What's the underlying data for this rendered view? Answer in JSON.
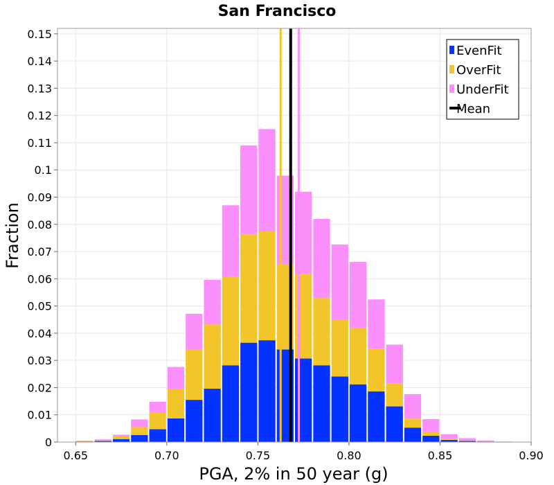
{
  "chart_data": {
    "type": "bar",
    "stacked": true,
    "title": "San Francisco",
    "xlabel": "PGA, 2% in 50 year (g)",
    "ylabel": "Fraction",
    "xlim": [
      0.64,
      0.9
    ],
    "ylim": [
      0,
      0.152
    ],
    "xticks": [
      "0.65",
      "0.70",
      "0.75",
      "0.80",
      "0.85",
      "0.90"
    ],
    "xtick_values": [
      0.65,
      0.7,
      0.75,
      0.8,
      0.85,
      0.9
    ],
    "yticks": [
      "0",
      "0.01",
      "0.02",
      "0.03",
      "0.04",
      "0.05",
      "0.06",
      "0.07",
      "0.08",
      "0.09",
      "0.1",
      "0.11",
      "0.12",
      "0.13",
      "0.14",
      "0.15"
    ],
    "ytick_values": [
      0,
      0.01,
      0.02,
      0.03,
      0.04,
      0.05,
      0.06,
      0.07,
      0.08,
      0.09,
      0.1,
      0.11,
      0.12,
      0.13,
      0.14,
      0.15
    ],
    "grid": true,
    "legend_position": "top-right",
    "bin_width": 0.01,
    "x": [
      0.655,
      0.665,
      0.675,
      0.685,
      0.695,
      0.705,
      0.715,
      0.725,
      0.735,
      0.745,
      0.755,
      0.765,
      0.775,
      0.785,
      0.795,
      0.805,
      0.815,
      0.825,
      0.835,
      0.845,
      0.855,
      0.865,
      0.875,
      0.885
    ],
    "series": [
      {
        "name": "EvenFit",
        "color": "#0433ff",
        "values": [
          0.0002,
          0.0004,
          0.0011,
          0.0026,
          0.0047,
          0.0087,
          0.0155,
          0.0196,
          0.0282,
          0.0365,
          0.0374,
          0.034,
          0.0307,
          0.0282,
          0.0241,
          0.0212,
          0.0186,
          0.0131,
          0.0053,
          0.0023,
          0.0008,
          0.0004,
          0.0002,
          0.0001
        ]
      },
      {
        "name": "OverFit",
        "color": "#f2c62a",
        "values": [
          0.0002,
          0.0004,
          0.0012,
          0.0029,
          0.0061,
          0.0107,
          0.0185,
          0.0236,
          0.0325,
          0.0398,
          0.04,
          0.0313,
          0.031,
          0.0247,
          0.0208,
          0.0206,
          0.0157,
          0.0085,
          0.0033,
          0.0013,
          0.0004,
          0.0002,
          0.0001,
          0.0
        ]
      },
      {
        "name": "UnderFit",
        "color": "#fb8ffb",
        "values": [
          0.0001,
          0.0002,
          0.0004,
          0.0028,
          0.004,
          0.0082,
          0.0131,
          0.0164,
          0.0263,
          0.0327,
          0.0376,
          0.0326,
          0.0303,
          0.0291,
          0.0277,
          0.0244,
          0.0181,
          0.0142,
          0.009,
          0.0048,
          0.0017,
          0.0008,
          0.0003,
          0.0001
        ]
      }
    ],
    "vertical_lines": [
      {
        "name": "OverFit",
        "x": 0.7625,
        "color": "#f2c62a"
      },
      {
        "name": "UnderFit",
        "x": 0.7725,
        "color": "#fb8ffb"
      },
      {
        "name": "Mean",
        "x": 0.768,
        "color": "#000000"
      }
    ],
    "legend": [
      {
        "label": "EvenFit",
        "color": "#0433ff",
        "kind": "box"
      },
      {
        "label": "OverFit",
        "color": "#f2c62a",
        "kind": "box"
      },
      {
        "label": "UnderFit",
        "color": "#fb8ffb",
        "kind": "box"
      },
      {
        "label": "Mean",
        "color": "#000000",
        "kind": "line"
      }
    ]
  }
}
